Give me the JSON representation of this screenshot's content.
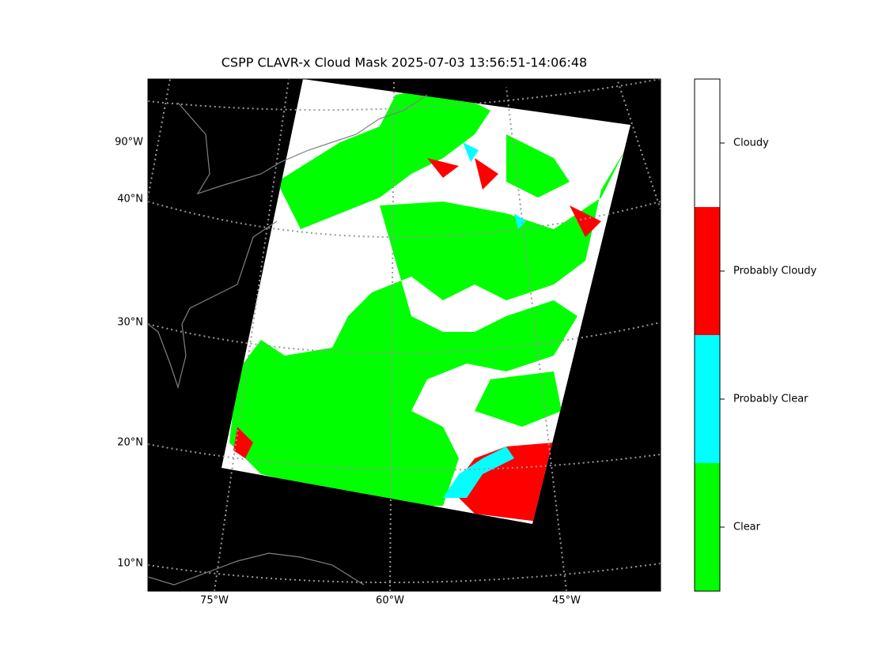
{
  "title": "CSPP CLAVR-x Cloud Mask 2025-07-03 13:56:51-14:06:48",
  "map": {
    "lat_labels": [
      "90°W",
      "40°N",
      "30°N",
      "20°N",
      "10°N"
    ],
    "lon_labels": [
      "75°W",
      "60°W",
      "45°W"
    ]
  },
  "colorbar": {
    "classes": [
      {
        "label": "Cloudy",
        "color": "#ffffff"
      },
      {
        "label": "Probably Cloudy",
        "color": "#ff0000"
      },
      {
        "label": "Probably Clear",
        "color": "#00ffff"
      },
      {
        "label": "Clear",
        "color": "#00ff00"
      }
    ]
  }
}
